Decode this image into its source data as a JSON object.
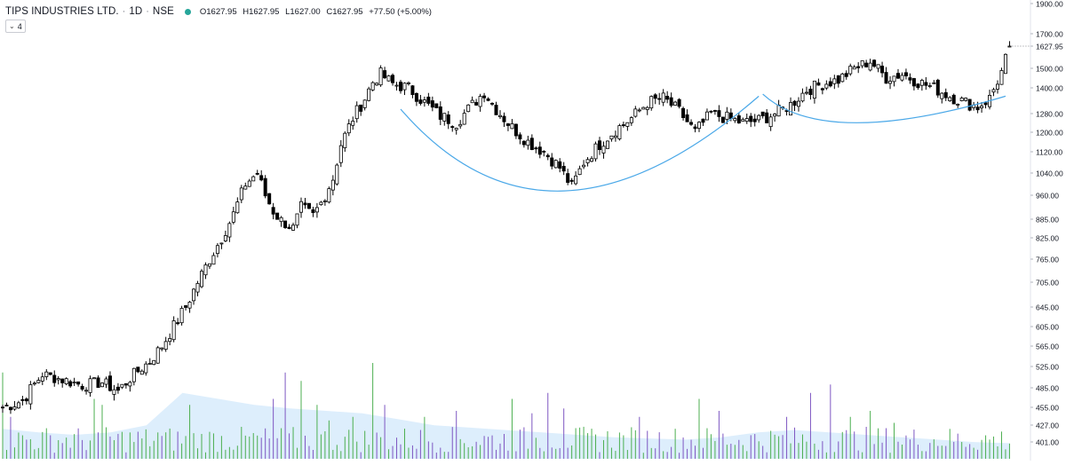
{
  "header": {
    "symbol": "TIPS INDUSTRIES LTD.",
    "interval": "1D",
    "exchange": "NSE",
    "separator": "·",
    "open": "O1627.95",
    "high": "H1627.95",
    "low": "L1627.00",
    "close": "C1627.95",
    "change": "+77.50 (+5.00%)",
    "status_color": "#26a69a",
    "indicator_toggle": {
      "icon": "chevron-down-icon",
      "count": "4"
    }
  },
  "chart_data": {
    "type": "candlestick",
    "title": "",
    "y_axis": {
      "position": "right",
      "scale": "log",
      "ticks": [
        1900.0,
        1700.0,
        1627.95,
        1500.0,
        1400.0,
        1280.0,
        1200.0,
        1120.0,
        1040.0,
        960.0,
        885.0,
        825.0,
        765.0,
        705.0,
        645.0,
        605.0,
        565.0,
        525.0,
        485.0,
        455.0,
        427.0,
        401.0
      ],
      "tick_labels": [
        "1900.00",
        "1700.00",
        "1627.95",
        "1500.00",
        "1400.00",
        "1280.00",
        "1200.00",
        "1120.00",
        "1040.00",
        "960.00",
        "885.00",
        "825.00",
        "765.00",
        "705.00",
        "645.00",
        "605.00",
        "565.00",
        "525.00",
        "485.00",
        "455.00",
        "427.00",
        "401.00"
      ],
      "current_price": 1627.95
    },
    "colors": {
      "up_body": "#ffffff",
      "down_body": "#000000",
      "candle_outline": "#000000",
      "volume_up": "#4caf50",
      "volume_down": "#7e57c2",
      "volume_ma_fill": "#ddeefc",
      "cup_curve": "#4aa8e8"
    },
    "anchors": [
      [
        0,
        455
      ],
      [
        5,
        465
      ],
      [
        10,
        510
      ],
      [
        15,
        500
      ],
      [
        20,
        490
      ],
      [
        25,
        495
      ],
      [
        29,
        480
      ],
      [
        33,
        510
      ],
      [
        37,
        535
      ],
      [
        40,
        565
      ],
      [
        43,
        605
      ],
      [
        46,
        645
      ],
      [
        49,
        705
      ],
      [
        52,
        765
      ],
      [
        55,
        825
      ],
      [
        58,
        900
      ],
      [
        61,
        1000
      ],
      [
        64,
        1040
      ],
      [
        66,
        960
      ],
      [
        68,
        910
      ],
      [
        70,
        880
      ],
      [
        73,
        855
      ],
      [
        75,
        920
      ],
      [
        78,
        895
      ],
      [
        80,
        935
      ],
      [
        83,
        1020
      ],
      [
        85,
        1150
      ],
      [
        88,
        1260
      ],
      [
        91,
        1350
      ],
      [
        93,
        1430
      ],
      [
        95,
        1470
      ],
      [
        98,
        1420
      ],
      [
        102,
        1400
      ],
      [
        106,
        1330
      ],
      [
        110,
        1270
      ],
      [
        114,
        1240
      ],
      [
        118,
        1320
      ],
      [
        121,
        1380
      ],
      [
        124,
        1300
      ],
      [
        128,
        1220
      ],
      [
        132,
        1160
      ],
      [
        136,
        1120
      ],
      [
        140,
        1060
      ],
      [
        143,
        990
      ],
      [
        146,
        1080
      ],
      [
        150,
        1150
      ],
      [
        154,
        1210
      ],
      [
        158,
        1260
      ],
      [
        162,
        1330
      ],
      [
        166,
        1350
      ],
      [
        170,
        1290
      ],
      [
        174,
        1200
      ],
      [
        178,
        1280
      ],
      [
        182,
        1260
      ],
      [
        186,
        1240
      ],
      [
        190,
        1250
      ],
      [
        194,
        1280
      ],
      [
        198,
        1320
      ],
      [
        202,
        1390
      ],
      [
        206,
        1420
      ],
      [
        210,
        1440
      ],
      [
        214,
        1500
      ],
      [
        218,
        1540
      ],
      [
        222,
        1450
      ],
      [
        226,
        1470
      ],
      [
        230,
        1430
      ],
      [
        234,
        1400
      ],
      [
        238,
        1360
      ],
      [
        242,
        1330
      ],
      [
        245,
        1310
      ],
      [
        248,
        1350
      ],
      [
        251,
        1480
      ],
      [
        253,
        1627.95
      ]
    ],
    "volume_spikes": [
      [
        0,
        0.72
      ],
      [
        2,
        0.35
      ],
      [
        23,
        0.5
      ],
      [
        25,
        0.45
      ],
      [
        39,
        0.22
      ],
      [
        47,
        0.45
      ],
      [
        68,
        0.5
      ],
      [
        71,
        0.72
      ],
      [
        75,
        0.65
      ],
      [
        79,
        0.45
      ],
      [
        82,
        0.32
      ],
      [
        88,
        0.35
      ],
      [
        93,
        0.8
      ],
      [
        96,
        0.45
      ],
      [
        106,
        0.35
      ],
      [
        114,
        0.4
      ],
      [
        128,
        0.5
      ],
      [
        133,
        0.38
      ],
      [
        137,
        0.55
      ],
      [
        141,
        0.42
      ],
      [
        160,
        0.35
      ],
      [
        175,
        0.5
      ],
      [
        180,
        0.4
      ],
      [
        197,
        0.35
      ],
      [
        203,
        0.55
      ],
      [
        208,
        0.62
      ],
      [
        213,
        0.35
      ],
      [
        218,
        0.4
      ],
      [
        224,
        0.3
      ]
    ],
    "volume_ma": [
      0.25,
      0.22,
      0.2,
      0.22,
      0.28,
      0.55,
      0.5,
      0.45,
      0.42,
      0.4,
      0.38,
      0.33,
      0.28,
      0.26,
      0.24,
      0.22,
      0.2,
      0.18,
      0.17,
      0.16,
      0.18,
      0.22,
      0.24,
      0.22,
      0.2,
      0.18,
      0.16,
      0.14,
      0.13
    ],
    "annotations": [
      {
        "type": "cup-curve",
        "from_x": 100,
        "lowest_x": 141,
        "to_x": 190,
        "from_price": 1300,
        "lowest_price": 975,
        "to_price": 1360
      },
      {
        "type": "handle-curve",
        "from_x": 191,
        "lowest_x": 214,
        "to_x": 252,
        "from_price": 1370,
        "lowest_price": 1240,
        "to_price": 1360
      }
    ]
  }
}
